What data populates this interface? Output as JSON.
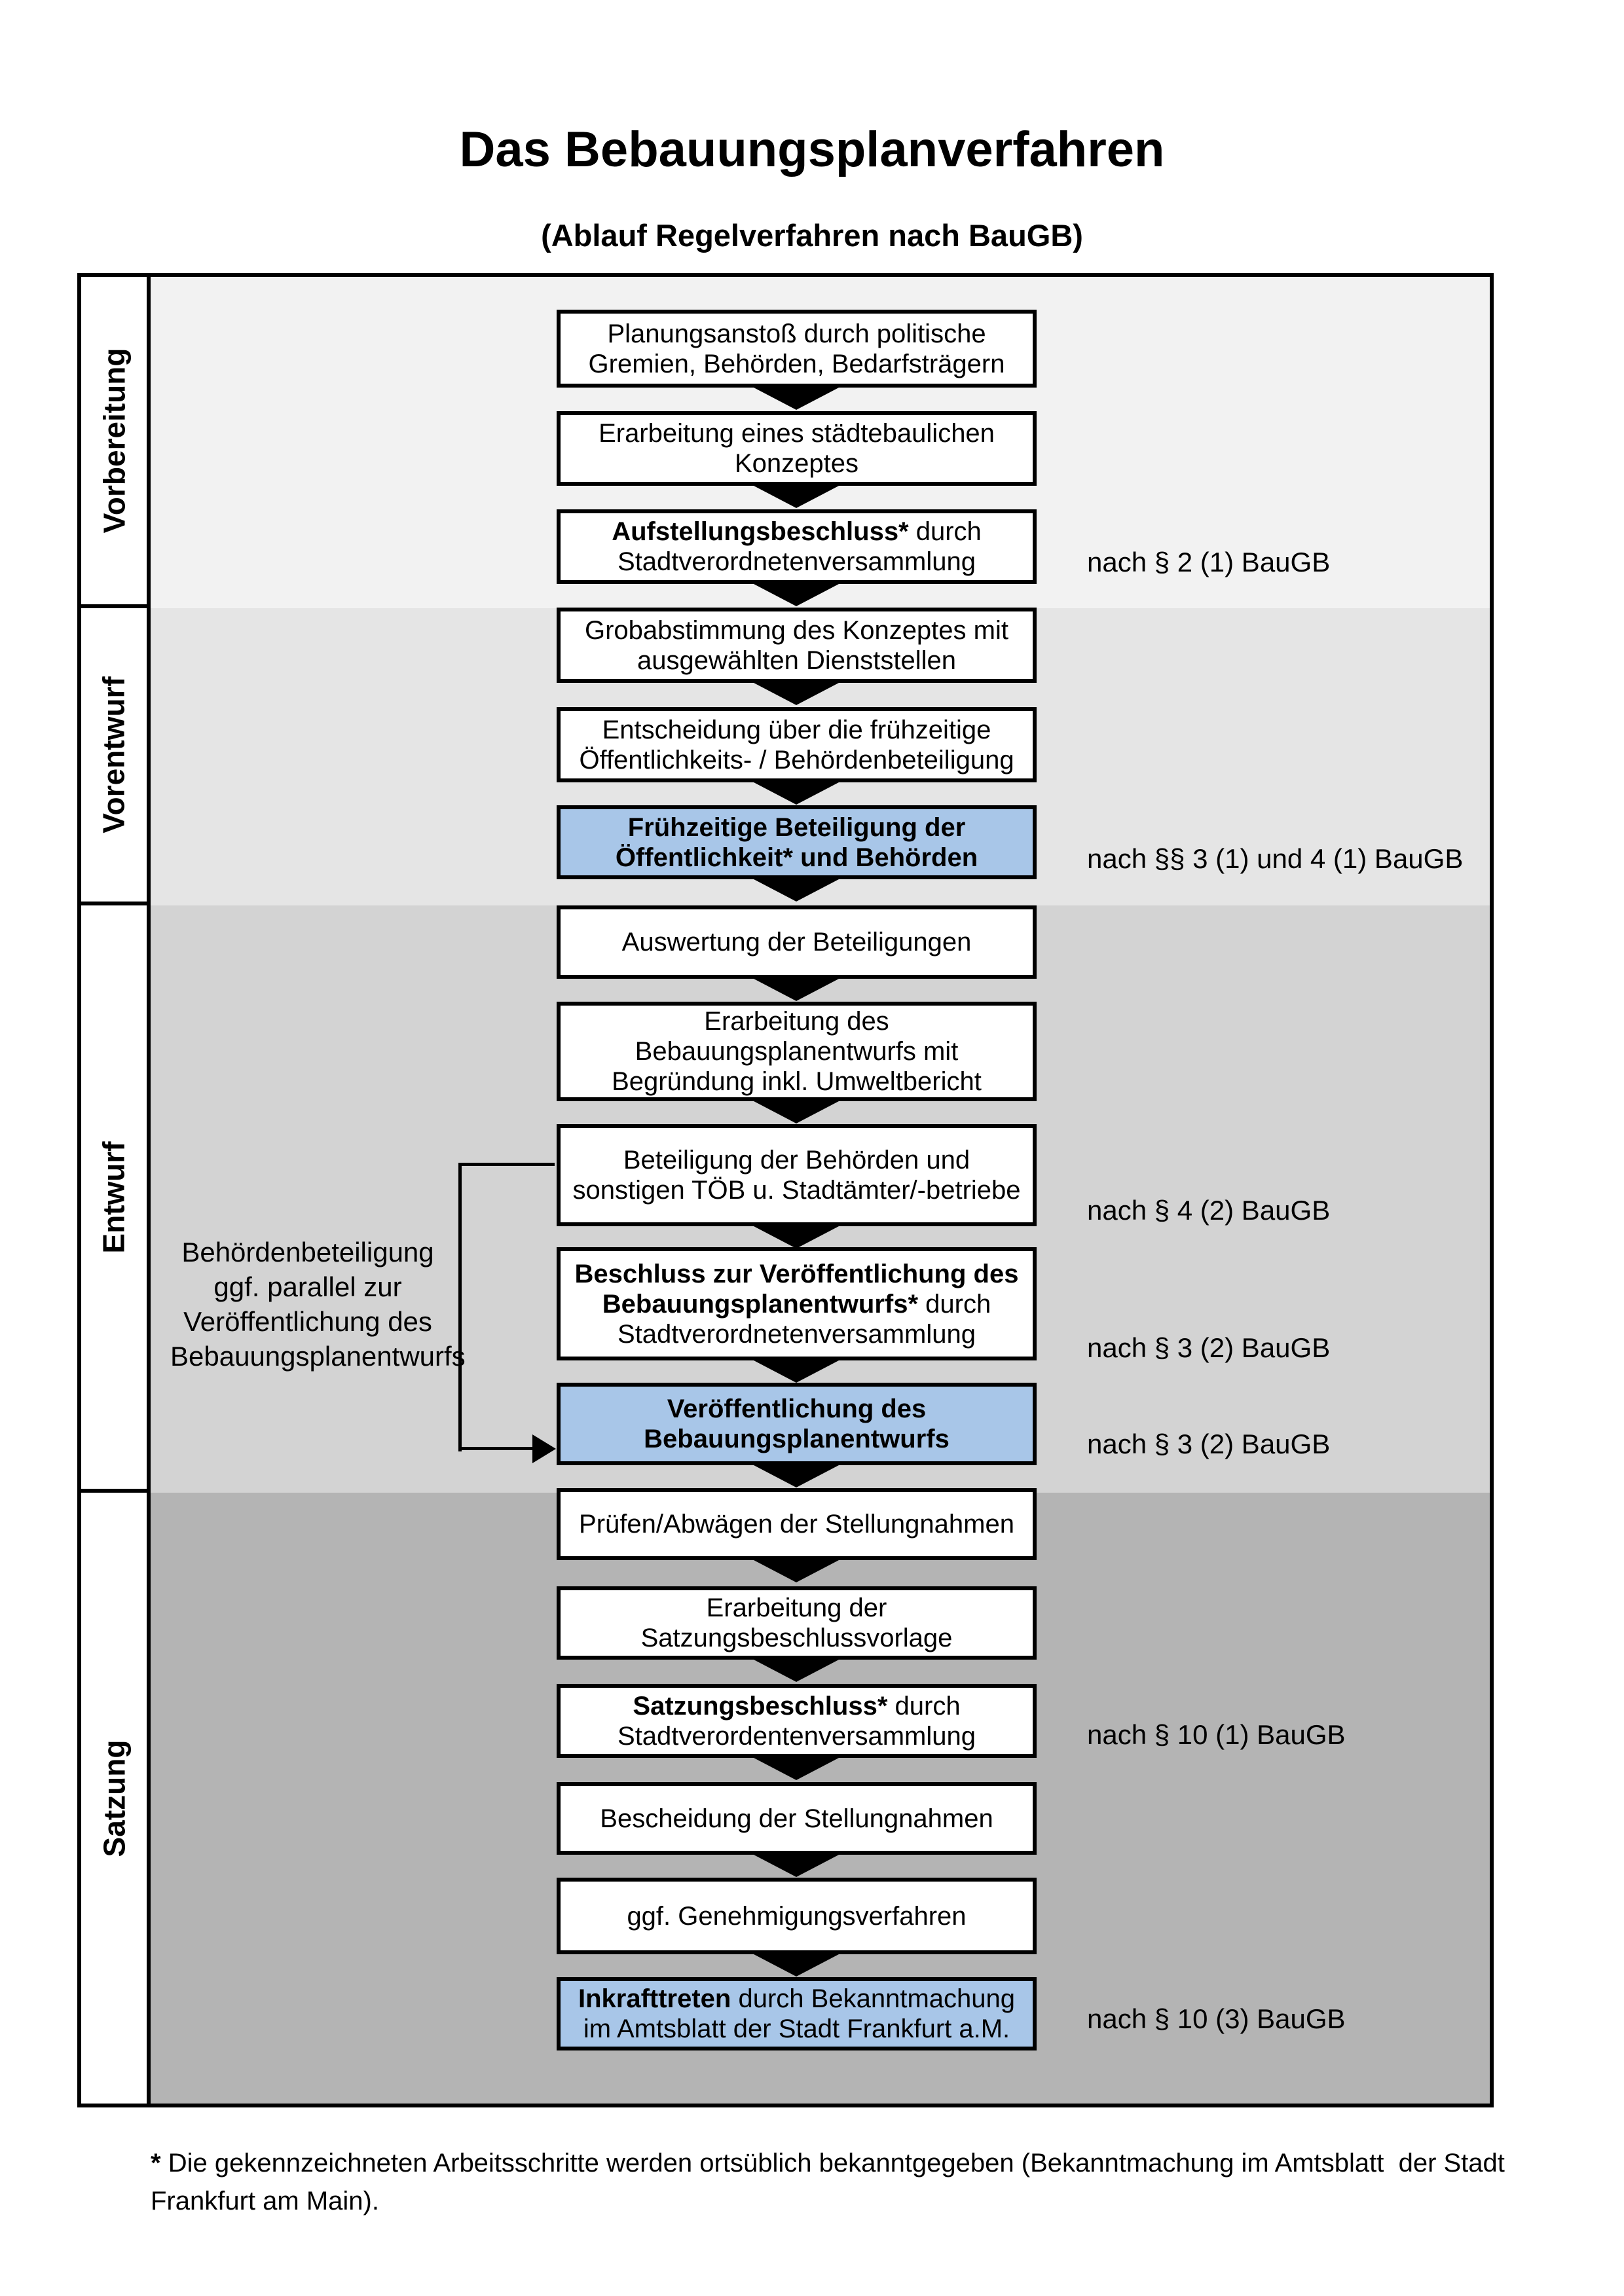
{
  "title": "Das Bebauungsplanverfahren",
  "subtitle": "(Ablauf Regelverfahren nach BauGB)",
  "colors": {
    "highlight_blue": "#a8c6e8",
    "phase_bands": [
      "#f2f2f2",
      "#e5e5e5",
      "#d3d3d3",
      "#b4b4b4"
    ],
    "box_border": "#000000"
  },
  "phases": [
    {
      "id": "vorbereitung",
      "label": "Vorbereitung"
    },
    {
      "id": "vorentwurf",
      "label": "Vorentwurf"
    },
    {
      "id": "entwurf",
      "label": "Entwurf"
    },
    {
      "id": "satzung",
      "label": "Satzung"
    }
  ],
  "boxes": [
    {
      "id": "planungsanstoss",
      "blue": false,
      "parts": [
        {
          "t": "Planungsanstoß durch politische\nGremien, Behörden, Bedarfsträgern",
          "b": false
        }
      ]
    },
    {
      "id": "staedtebauliches-konzept",
      "blue": false,
      "parts": [
        {
          "t": "Erarbeitung eines städtebaulichen\nKonzeptes",
          "b": false
        }
      ]
    },
    {
      "id": "aufstellungsbeschluss",
      "blue": false,
      "parts": [
        {
          "t": "Aufstellungsbeschluss*",
          "b": true
        },
        {
          "t": " durch\nStadtverordnetenversammlung",
          "b": false
        }
      ]
    },
    {
      "id": "grobabstimmung",
      "blue": false,
      "parts": [
        {
          "t": "Grobabstimmung des Konzeptes mit\nausgewählten Dienststellen",
          "b": false
        }
      ]
    },
    {
      "id": "entscheidung-fruehzeitige-beteiligung",
      "blue": false,
      "parts": [
        {
          "t": "Entscheidung über die frühzeitige\nÖffentlichkeits- / Behördenbeteiligung",
          "b": false
        }
      ]
    },
    {
      "id": "fruehzeitige-beteiligung",
      "blue": true,
      "parts": [
        {
          "t": "Frühzeitige Beteiligung der\nÖffentlichkeit* und Behörden",
          "b": true
        }
      ]
    },
    {
      "id": "auswertung-beteiligungen",
      "blue": false,
      "parts": [
        {
          "t": "Auswertung der Beteiligungen",
          "b": false
        }
      ]
    },
    {
      "id": "erarbeitung-bebauungsplanentwurf",
      "blue": false,
      "parts": [
        {
          "t": "Erarbeitung des\nBebauungsplanentwurfs mit\nBegründung inkl. Umweltbericht",
          "b": false
        }
      ]
    },
    {
      "id": "behoerdenbeteiligung-toeb",
      "blue": false,
      "parts": [
        {
          "t": "Beteiligung der Behörden und\nsonstigen TÖB u. Stadtämter/-betriebe",
          "b": false
        }
      ]
    },
    {
      "id": "beschluss-veroeffentlichung",
      "blue": false,
      "parts": [
        {
          "t": "Beschluss zur Veröffentlichung des\nBebauungsplanentwurfs*",
          "b": true
        },
        {
          "t": " durch\nStadtverordnetenversammlung",
          "b": false
        }
      ]
    },
    {
      "id": "veroeffentlichung-entwurf",
      "blue": true,
      "parts": [
        {
          "t": "Veröffentlichung des\nBebauungsplanentwurfs",
          "b": true
        }
      ]
    },
    {
      "id": "pruefen-abwaegen",
      "blue": false,
      "parts": [
        {
          "t": "Prüfen/Abwägen der Stellungnahmen",
          "b": false
        }
      ]
    },
    {
      "id": "satzungsbeschlussvorlage",
      "blue": false,
      "parts": [
        {
          "t": "Erarbeitung der\nSatzungsbeschlussvorlage",
          "b": false
        }
      ]
    },
    {
      "id": "satzungsbeschluss",
      "blue": false,
      "parts": [
        {
          "t": "Satzungsbeschluss*",
          "b": true
        },
        {
          "t": " durch\nStadtverordentenversammlung",
          "b": false
        }
      ]
    },
    {
      "id": "bescheidung-stellungnahmen",
      "blue": false,
      "parts": [
        {
          "t": "Bescheidung der Stellungnahmen",
          "b": false
        }
      ]
    },
    {
      "id": "genehmigungsverfahren",
      "blue": false,
      "parts": [
        {
          "t": "ggf. Genehmigungsverfahren",
          "b": false
        }
      ]
    },
    {
      "id": "inkrafttreten",
      "blue": true,
      "parts": [
        {
          "t": "Inkrafttreten",
          "b": true
        },
        {
          "t": " durch Bekanntmachung\nim Amtsblatt der Stadt Frankfurt a.M.",
          "b": false
        }
      ]
    }
  ],
  "legal_refs": [
    {
      "text": "nach § 2 (1) BauGB"
    },
    {
      "text": "nach §§ 3 (1) und 4 (1) BauGB"
    },
    {
      "text": "nach § 4 (2) BauGB"
    },
    {
      "text": "nach § 3 (2) BauGB"
    },
    {
      "text": "nach § 3 (2) BauGB"
    },
    {
      "text": "nach § 10 (1) BauGB"
    },
    {
      "text": "nach § 10 (3) BauGB"
    }
  ],
  "annotation": {
    "text": "Behördenbeteiligung\nggf. parallel zur\nVeröffentlichung des\nBebauungsplanentwurfs"
  },
  "footnote": {
    "star": "*",
    "text": " Die gekennzeichneten Arbeitsschritte werden ortsüblich bekanntgegeben (Bekanntmachung im Amtsblatt  der Stadt\nFrankfurt am Main)."
  }
}
